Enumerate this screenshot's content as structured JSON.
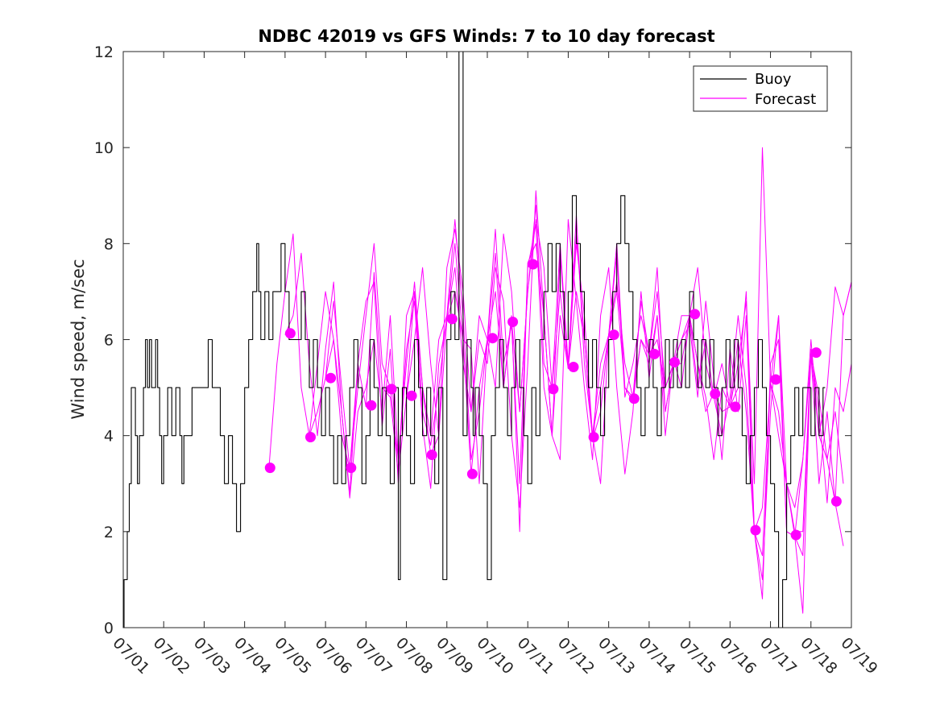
{
  "chart_data": {
    "type": "line",
    "title": "NDBC 42019 vs GFS Winds: 7 to 10 day forecast",
    "xlabel": "",
    "ylabel": "Wind speed, m/sec",
    "x_ticks": [
      "07/01",
      "07/02",
      "07/03",
      "07/04",
      "07/05",
      "07/06",
      "07/07",
      "07/08",
      "07/09",
      "07/10",
      "07/11",
      "07/12",
      "07/13",
      "07/14",
      "07/15",
      "07/16",
      "07/17",
      "07/18",
      "07/19"
    ],
    "y_ticks": [
      "0",
      "2",
      "4",
      "6",
      "8",
      "10",
      "12"
    ],
    "xlim": [
      1,
      19
    ],
    "ylim": [
      0,
      12
    ],
    "grid": false,
    "legend": {
      "position": "top-right",
      "entries": [
        "Buoy",
        "Forecast"
      ]
    },
    "colors": {
      "buoy": "#000000",
      "forecast": "#ff00ff"
    },
    "series": [
      {
        "name": "Buoy",
        "style": "step",
        "x": [
          1.0,
          1.02,
          1.1,
          1.15,
          1.2,
          1.3,
          1.35,
          1.4,
          1.5,
          1.55,
          1.6,
          1.65,
          1.7,
          1.8,
          1.85,
          1.9,
          1.95,
          2.0,
          2.1,
          2.2,
          2.3,
          2.4,
          2.45,
          2.5,
          2.6,
          2.7,
          2.8,
          3.0,
          3.1,
          3.2,
          3.4,
          3.5,
          3.6,
          3.7,
          3.8,
          3.9,
          4.0,
          4.1,
          4.2,
          4.3,
          4.35,
          4.4,
          4.5,
          4.6,
          4.7,
          4.8,
          4.9,
          5.0,
          5.1,
          5.2,
          5.3,
          5.4,
          5.5,
          5.6,
          5.7,
          5.8,
          5.9,
          6.0,
          6.1,
          6.2,
          6.3,
          6.4,
          6.5,
          6.6,
          6.7,
          6.8,
          6.9,
          7.0,
          7.1,
          7.2,
          7.3,
          7.4,
          7.5,
          7.6,
          7.7,
          7.8,
          7.85,
          7.9,
          8.0,
          8.1,
          8.2,
          8.3,
          8.4,
          8.5,
          8.6,
          8.7,
          8.8,
          8.9,
          9.0,
          9.1,
          9.2,
          9.3,
          9.4,
          9.5,
          9.6,
          9.65,
          9.7,
          9.8,
          9.9,
          10.0,
          10.1,
          10.2,
          10.3,
          10.4,
          10.5,
          10.6,
          10.7,
          10.8,
          10.9,
          11.0,
          11.1,
          11.2,
          11.3,
          11.4,
          11.5,
          11.6,
          11.7,
          11.8,
          11.9,
          12.0,
          12.1,
          12.2,
          12.3,
          12.4,
          12.5,
          12.6,
          12.7,
          12.8,
          12.9,
          13.0,
          13.1,
          13.2,
          13.3,
          13.4,
          13.5,
          13.6,
          13.7,
          13.8,
          13.9,
          14.0,
          14.1,
          14.2,
          14.3,
          14.4,
          14.5,
          14.6,
          14.7,
          14.8,
          14.9,
          15.0,
          15.1,
          15.2,
          15.3,
          15.4,
          15.5,
          15.6,
          15.7,
          15.8,
          15.9,
          16.0,
          16.1,
          16.2,
          16.3,
          16.4,
          16.5,
          16.6,
          16.7,
          16.8,
          16.9,
          17.0,
          17.1,
          17.2,
          17.3,
          17.4,
          17.5,
          17.6,
          17.7,
          17.8,
          17.9,
          18.0,
          18.1,
          18.2,
          18.3
        ],
        "y": [
          0,
          1,
          2,
          3,
          5,
          4,
          3,
          4,
          5,
          6,
          5,
          6,
          5,
          6,
          5,
          4,
          3,
          4,
          5,
          4,
          5,
          4,
          3,
          4,
          4,
          5,
          5,
          5,
          6,
          5,
          4,
          3,
          4,
          3,
          2,
          3,
          5,
          6,
          7,
          8,
          7,
          6,
          7,
          6,
          7,
          7,
          8,
          7,
          6,
          6,
          6,
          7,
          6,
          5,
          6,
          5,
          4,
          5,
          4,
          3,
          4,
          3,
          4,
          5,
          6,
          5,
          3,
          4,
          6,
          5,
          4,
          5,
          4,
          3,
          5,
          1,
          4,
          5,
          4,
          3,
          6,
          5,
          4,
          5,
          4,
          3,
          5,
          1,
          6,
          7,
          6,
          12,
          4,
          6,
          5,
          4,
          5,
          4,
          3,
          1,
          4,
          5,
          6,
          5,
          4,
          5,
          6,
          5,
          4,
          3,
          5,
          4,
          6,
          7,
          8,
          7,
          8,
          7,
          6,
          7,
          9,
          8,
          7,
          6,
          5,
          6,
          5,
          4,
          5,
          6,
          7,
          8,
          9,
          8,
          7,
          6,
          5,
          4,
          5,
          6,
          5,
          4,
          5,
          6,
          5,
          6,
          5,
          6,
          5,
          7,
          6,
          5,
          6,
          5,
          6,
          5,
          4,
          5,
          6,
          5,
          6,
          5,
          4,
          3,
          4,
          5,
          6,
          5,
          4,
          3,
          2,
          0,
          1,
          3,
          4,
          5,
          4,
          5,
          5,
          4,
          5,
          4,
          5
        ]
      },
      {
        "name": "Forecast",
        "style": "line",
        "x": [
          4.6,
          4.8,
          5.0,
          5.2,
          5.4,
          5.6,
          5.8,
          6.0,
          6.2,
          6.4,
          6.6,
          6.8,
          7.0,
          7.2,
          7.4,
          7.6,
          7.8,
          8.0,
          8.2,
          8.4,
          8.6,
          8.8,
          9.0,
          9.2,
          9.4,
          9.6,
          9.8,
          10.0,
          10.2,
          10.4,
          10.6,
          10.8,
          11.0,
          11.2,
          11.4,
          11.6,
          11.8,
          12.0,
          12.2,
          12.4,
          12.6,
          12.8,
          13.0,
          13.2,
          13.4,
          13.6,
          13.8,
          14.0,
          14.2,
          14.4,
          14.6,
          14.8,
          15.0,
          15.2,
          15.4,
          15.6,
          15.8,
          16.0,
          16.2,
          16.4,
          16.6,
          16.8,
          17.0,
          17.2,
          17.4,
          17.6,
          17.8,
          18.0,
          18.2,
          18.4,
          18.6,
          18.8,
          19.0
        ],
        "y": [
          3.3,
          5.5,
          7.0,
          8.2,
          5.0,
          4.0,
          4.5,
          5.2,
          6.8,
          5.0,
          3.3,
          5.5,
          4.6,
          7.4,
          5.0,
          4.8,
          3.2,
          4.8,
          7.0,
          5.0,
          3.6,
          4.0,
          6.4,
          8.0,
          6.0,
          3.2,
          5.0,
          6.0,
          8.3,
          5.5,
          6.3,
          3.0,
          7.5,
          8.4,
          5.0,
          4.0,
          7.8,
          5.4,
          8.2,
          6.0,
          3.9,
          4.5,
          6.1,
          8.0,
          5.0,
          4.7,
          6.0,
          5.7,
          7.0,
          5.0,
          5.5,
          6.5,
          6.5,
          5.5,
          4.8,
          3.5,
          5.0,
          4.6,
          5.0,
          7.0,
          2.0,
          2.5,
          5.1,
          6.5,
          2.0,
          1.9,
          1.5,
          5.7,
          3.0,
          4.5,
          2.6,
          6.5,
          7.2
        ]
      },
      {
        "name": "Forecast",
        "style": "line",
        "x": [
          5.0,
          5.2,
          5.4,
          5.6,
          5.8,
          6.0,
          6.2,
          6.4,
          6.6,
          6.8,
          7.0,
          7.2,
          7.4,
          7.6,
          7.8,
          8.0,
          8.2,
          8.4,
          8.6,
          8.8,
          9.0,
          9.2,
          9.4,
          9.6,
          9.8,
          10.0,
          10.2,
          10.4,
          10.6,
          10.8,
          11.0,
          11.2,
          11.4,
          11.6,
          11.8,
          12.0,
          12.2,
          12.4,
          12.6,
          12.8,
          13.0,
          13.2,
          13.4,
          13.6,
          13.8,
          14.0,
          14.2,
          14.4,
          14.6,
          14.8,
          15.0,
          15.2,
          15.4,
          15.6,
          15.8,
          16.0,
          16.2,
          16.4,
          16.6,
          16.8,
          17.0,
          17.2,
          17.4,
          17.6,
          17.8,
          18.0,
          18.2,
          18.4,
          18.6,
          18.8
        ],
        "y": [
          6.1,
          6.5,
          7.8,
          5.5,
          4.0,
          5.8,
          7.2,
          4.5,
          2.8,
          5.5,
          6.8,
          7.2,
          4.2,
          5.8,
          3.0,
          6.5,
          7.0,
          4.5,
          3.8,
          5.0,
          6.5,
          7.5,
          5.5,
          4.5,
          6.0,
          5.5,
          7.5,
          6.8,
          4.0,
          2.5,
          5.5,
          9.1,
          6.5,
          4.0,
          3.5,
          8.5,
          6.8,
          5.0,
          3.5,
          6.5,
          7.5,
          5.0,
          3.2,
          4.5,
          7.0,
          5.2,
          6.5,
          4.5,
          5.5,
          6.0,
          6.3,
          4.8,
          6.8,
          5.2,
          3.5,
          5.8,
          4.5,
          6.5,
          2.0,
          1.0,
          4.5,
          6.5,
          3.0,
          2.5,
          3.5,
          6.0,
          4.0,
          3.5,
          4.5,
          3.0
        ]
      },
      {
        "name": "Forecast",
        "style": "line",
        "x": [
          5.6,
          5.8,
          6.0,
          6.2,
          6.4,
          6.6,
          6.8,
          7.0,
          7.2,
          7.4,
          7.6,
          7.8,
          8.0,
          8.2,
          8.4,
          8.6,
          8.8,
          9.0,
          9.2,
          9.4,
          9.6,
          9.8,
          10.0,
          10.2,
          10.4,
          10.6,
          10.8,
          11.0,
          11.2,
          11.4,
          11.6,
          11.8,
          12.0,
          12.2,
          12.4,
          12.6,
          12.8,
          13.0,
          13.2,
          13.4,
          13.6,
          13.8,
          14.0,
          14.2,
          14.4,
          14.6,
          14.8,
          15.0,
          15.2,
          15.4,
          15.6,
          15.8,
          16.0,
          16.2,
          16.4,
          16.6,
          16.8,
          17.0,
          17.2,
          17.4,
          17.6,
          17.8,
          18.0,
          18.2,
          18.4,
          18.6,
          18.8,
          19.0
        ],
        "y": [
          4.0,
          5.5,
          7.0,
          6.0,
          4.0,
          3.3,
          5.0,
          6.5,
          8.0,
          5.5,
          5.0,
          3.5,
          5.5,
          7.2,
          5.0,
          4.0,
          6.0,
          6.5,
          8.5,
          6.5,
          3.5,
          4.5,
          6.0,
          7.8,
          5.0,
          6.4,
          4.5,
          7.0,
          8.8,
          5.5,
          5.0,
          8.0,
          5.5,
          8.6,
          5.5,
          4.0,
          5.0,
          6.1,
          7.8,
          4.8,
          5.5,
          6.5,
          5.7,
          7.5,
          4.5,
          5.5,
          5.5,
          6.5,
          5.0,
          6.0,
          4.8,
          4.0,
          4.8,
          6.5,
          5.0,
          2.0,
          0.6,
          5.5,
          6.0,
          2.0,
          1.9,
          0.3,
          5.8,
          4.5,
          2.6,
          5.0,
          4.5,
          5.5
        ]
      },
      {
        "name": "Forecast",
        "style": "line",
        "x": [
          6.0,
          6.2,
          6.4,
          6.6,
          6.8,
          7.0,
          7.2,
          7.4,
          7.6,
          7.8,
          8.0,
          8.2,
          8.4,
          8.6,
          8.8,
          9.0,
          9.2,
          9.4,
          9.6,
          9.8,
          10.0,
          10.2,
          10.4,
          10.6,
          10.8,
          11.0,
          11.2,
          11.4,
          11.6,
          11.8,
          12.0,
          12.2,
          12.4,
          12.6,
          12.8,
          13.0,
          13.2,
          13.4,
          13.6,
          13.8,
          14.0,
          14.2,
          14.4,
          14.6,
          14.8,
          15.0,
          15.2,
          15.4,
          15.6,
          15.8,
          16.0,
          16.2,
          16.4,
          16.6,
          16.8,
          17.0,
          17.2,
          17.4,
          17.6,
          17.8,
          18.0,
          18.2,
          18.4,
          18.6,
          18.8
        ],
        "y": [
          5.2,
          6.0,
          4.5,
          2.7,
          4.5,
          5.0,
          6.0,
          4.5,
          6.5,
          3.5,
          5.8,
          6.8,
          4.2,
          2.9,
          5.5,
          6.4,
          7.0,
          6.0,
          5.8,
          3.0,
          6.0,
          7.0,
          5.0,
          6.5,
          2.0,
          7.6,
          8.0,
          6.5,
          4.0,
          6.5,
          5.4,
          7.0,
          6.0,
          4.0,
          5.5,
          6.1,
          7.0,
          5.0,
          4.8,
          6.0,
          5.5,
          6.5,
          4.0,
          5.6,
          5.0,
          6.5,
          5.5,
          4.5,
          4.9,
          4.5,
          4.6,
          6.0,
          4.5,
          2.0,
          1.5,
          5.1,
          4.5,
          3.0,
          2.0,
          2.0,
          5.7,
          4.8,
          3.5,
          2.6,
          1.7
        ]
      },
      {
        "name": "Forecast",
        "style": "line",
        "x": [
          8.0,
          8.2,
          8.4,
          8.6,
          8.8,
          9.0,
          9.2,
          9.4,
          9.6,
          9.8,
          10.0,
          10.2,
          10.4,
          10.6,
          10.8,
          11.0,
          11.2,
          11.4,
          11.6,
          11.8,
          12.0,
          12.2,
          12.4,
          12.6,
          12.8,
          13.0,
          13.2,
          13.4,
          13.6,
          13.8,
          14.0,
          14.2,
          14.4,
          14.6,
          14.8,
          15.0,
          15.2,
          15.4,
          15.6,
          15.8,
          16.0,
          16.2,
          16.4,
          16.6,
          16.8,
          17.0,
          17.2,
          17.4,
          17.6,
          17.8,
          18.0,
          18.2,
          18.4,
          18.6,
          18.8,
          19.0
        ],
        "y": [
          4.8,
          6.0,
          7.5,
          5.5,
          4.0,
          7.5,
          8.3,
          7.0,
          4.5,
          6.5,
          6.0,
          5.0,
          8.2,
          7.0,
          4.5,
          7.0,
          8.5,
          7.5,
          5.0,
          7.0,
          5.4,
          8.0,
          6.5,
          4.0,
          3.0,
          6.1,
          7.2,
          5.5,
          4.8,
          6.8,
          5.7,
          6.0,
          5.0,
          5.5,
          6.0,
          6.5,
          7.5,
          5.5,
          4.8,
          5.5,
          4.6,
          5.5,
          6.8,
          3.0,
          10.0,
          5.1,
          4.0,
          3.0,
          1.9,
          3.5,
          5.7,
          4.0,
          5.0,
          7.1,
          6.5,
          7.2
        ]
      }
    ],
    "markers": {
      "name": "Forecast",
      "x": [
        4.63,
        5.13,
        5.63,
        6.13,
        6.63,
        7.13,
        7.63,
        8.13,
        8.63,
        9.13,
        9.63,
        10.13,
        10.63,
        11.13,
        11.63,
        12.13,
        12.63,
        13.13,
        13.63,
        14.13,
        14.63,
        15.13,
        15.63,
        16.13,
        16.63,
        17.13,
        17.63,
        18.13,
        18.63
      ],
      "y": [
        3.33,
        6.13,
        3.97,
        5.2,
        3.33,
        4.63,
        4.97,
        4.83,
        3.6,
        6.43,
        3.2,
        6.03,
        6.37,
        7.57,
        4.97,
        5.43,
        3.97,
        6.1,
        4.77,
        5.7,
        5.53,
        6.53,
        4.87,
        4.6,
        2.03,
        5.17,
        1.93,
        5.73,
        2.63
      ]
    }
  }
}
